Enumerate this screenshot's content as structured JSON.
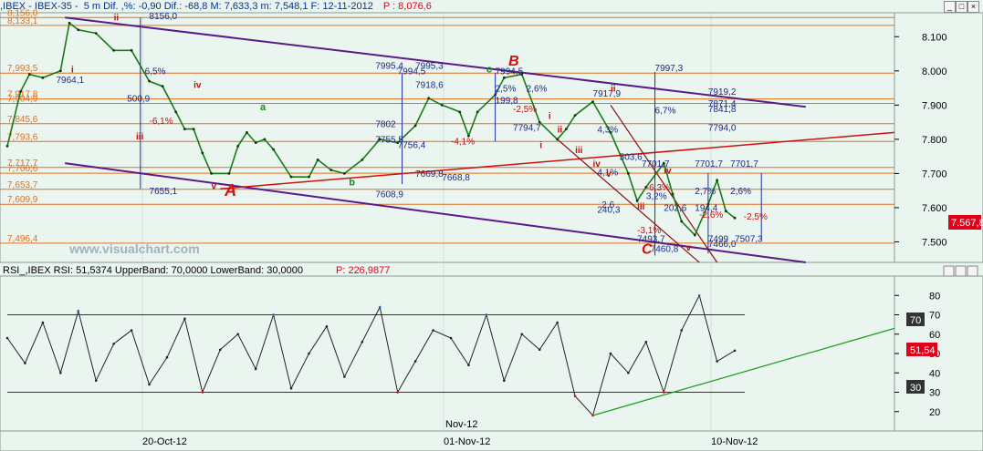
{
  "price_panel": {
    "header": {
      "prefix": ",IBEX - IBEX-35 -  5 m Dif. ,%: -0,90 Dif.: -68,8 M: 7,633,3 m: 7,548,1 F: 12-11-2012",
      "p_label": "P : 8,076,6"
    },
    "watermark": "www.visualchart.com",
    "right_axis_labels": [
      "8.100",
      "8.000",
      "7.900",
      "7.800",
      "7.700",
      "7.600",
      "7.500"
    ],
    "price_tag": "7.567,8",
    "left_levels": [
      "8,156,0",
      "8,133,1",
      "7,993,5",
      "7,917,8",
      "7,904,9",
      "7,845,6",
      "7,793,6",
      "7,717,7",
      "7,700,6",
      "7,653,7",
      "7,609,9",
      "7,496,4"
    ],
    "annotations": [
      "8156,0",
      "6,5%",
      "500,9",
      "-6,1%",
      "7655,1",
      "7995,4",
      "7995,3",
      "7994,5",
      "7918,6",
      "7802",
      "7756,4",
      "7755,5",
      "-4,1%",
      "7669,8",
      "7668,8",
      "7608,9",
      "7994,5",
      "2,5%",
      "199,8",
      "-2,5%",
      "7794,7",
      "2,6%",
      "7917,9",
      "4,3%",
      "7997,3",
      "7919,2",
      "7871,4",
      "7841,8",
      "7794,0",
      "6,7%",
      "503,6",
      "7701,7",
      "7701,7",
      "7701,7",
      "-6,3%",
      "2,7%",
      "2,6%",
      "3,2%",
      "202,6",
      "194,4",
      "-2,6%",
      "-2,5%",
      "-3,1%",
      "7493,7",
      "7499",
      "7507,3",
      "7466,0",
      "7460,8",
      "7964,1",
      "4,1%",
      "240,3",
      "2,6"
    ],
    "wave_labels": [
      "A",
      "B",
      "C",
      "a",
      "b",
      "c",
      "i",
      "ii",
      "iii",
      "iv",
      "v",
      "i",
      "ii",
      "iii",
      "iv",
      "v",
      "i",
      "ii",
      "iii",
      "iv",
      "v"
    ]
  },
  "rsi_panel": {
    "header": {
      "prefix": "RSI_,IBEX RSI: 51,5374 UpperBand: 70,0000 LowerBand: 30,0000",
      "p_label": "P: 226,9877"
    },
    "right_axis_labels": [
      "80",
      "70",
      "60",
      "50",
      "40",
      "30",
      "20"
    ],
    "upper_band": 70,
    "lower_band": 30,
    "current_tag": "51,54",
    "band_tag_upper": "70",
    "band_tag_lower": "30"
  },
  "time_axis": {
    "labels": [
      "20-Oct-12",
      "01-Nov-12",
      "10-Nov-12"
    ],
    "month_marker": "Nov-12"
  },
  "chart_data": {
    "type": "line",
    "title": "IBEX - IBEX-35 - 5 m",
    "ylim": [
      7440,
      8170
    ],
    "x_range": [
      0,
      100
    ],
    "series": [
      {
        "name": "IBEX",
        "x": [
          0,
          1.5,
          2.5,
          4,
          6,
          7,
          8,
          10,
          12,
          14,
          16,
          17.5,
          19,
          20,
          21,
          22,
          23,
          25,
          26,
          27,
          28,
          29,
          30,
          32,
          34,
          35,
          36.5,
          38,
          40,
          42,
          44,
          46,
          47.5,
          49,
          51,
          52,
          53,
          55,
          56,
          58,
          60,
          62,
          63,
          64,
          66,
          68,
          70,
          71,
          72,
          74,
          75,
          76,
          77.5,
          79,
          80,
          81,
          82
        ],
        "values": [
          7780,
          7940,
          7990,
          7980,
          8000,
          8140,
          8120,
          8110,
          8060,
          8060,
          7970,
          7955,
          7880,
          7830,
          7830,
          7760,
          7700,
          7700,
          7780,
          7820,
          7790,
          7800,
          7770,
          7690,
          7690,
          7740,
          7710,
          7700,
          7740,
          7800,
          7790,
          7840,
          7920,
          7900,
          7880,
          7810,
          7880,
          7930,
          7980,
          7990,
          7850,
          7800,
          7830,
          7870,
          7910,
          7820,
          7700,
          7620,
          7660,
          7730,
          7640,
          7560,
          7520,
          7610,
          7680,
          7590,
          7570
        ]
      },
      {
        "name": "RSI",
        "x": [
          0,
          2,
          4,
          6,
          8,
          10,
          12,
          14,
          16,
          18,
          20,
          22,
          24,
          26,
          28,
          30,
          32,
          34,
          36,
          38,
          40,
          42,
          44,
          46,
          48,
          50,
          52,
          54,
          56,
          58,
          60,
          62,
          64,
          66,
          68,
          70,
          72,
          74,
          76,
          78,
          80,
          82
        ],
        "values": [
          58,
          45,
          66,
          40,
          72,
          36,
          55,
          62,
          34,
          48,
          68,
          30,
          52,
          60,
          42,
          70,
          32,
          50,
          64,
          38,
          56,
          74,
          30,
          46,
          62,
          58,
          44,
          70,
          36,
          60,
          52,
          66,
          28,
          18,
          50,
          40,
          56,
          30,
          62,
          80,
          46,
          51.5
        ]
      }
    ],
    "xlabel": "",
    "ylabel": ""
  }
}
